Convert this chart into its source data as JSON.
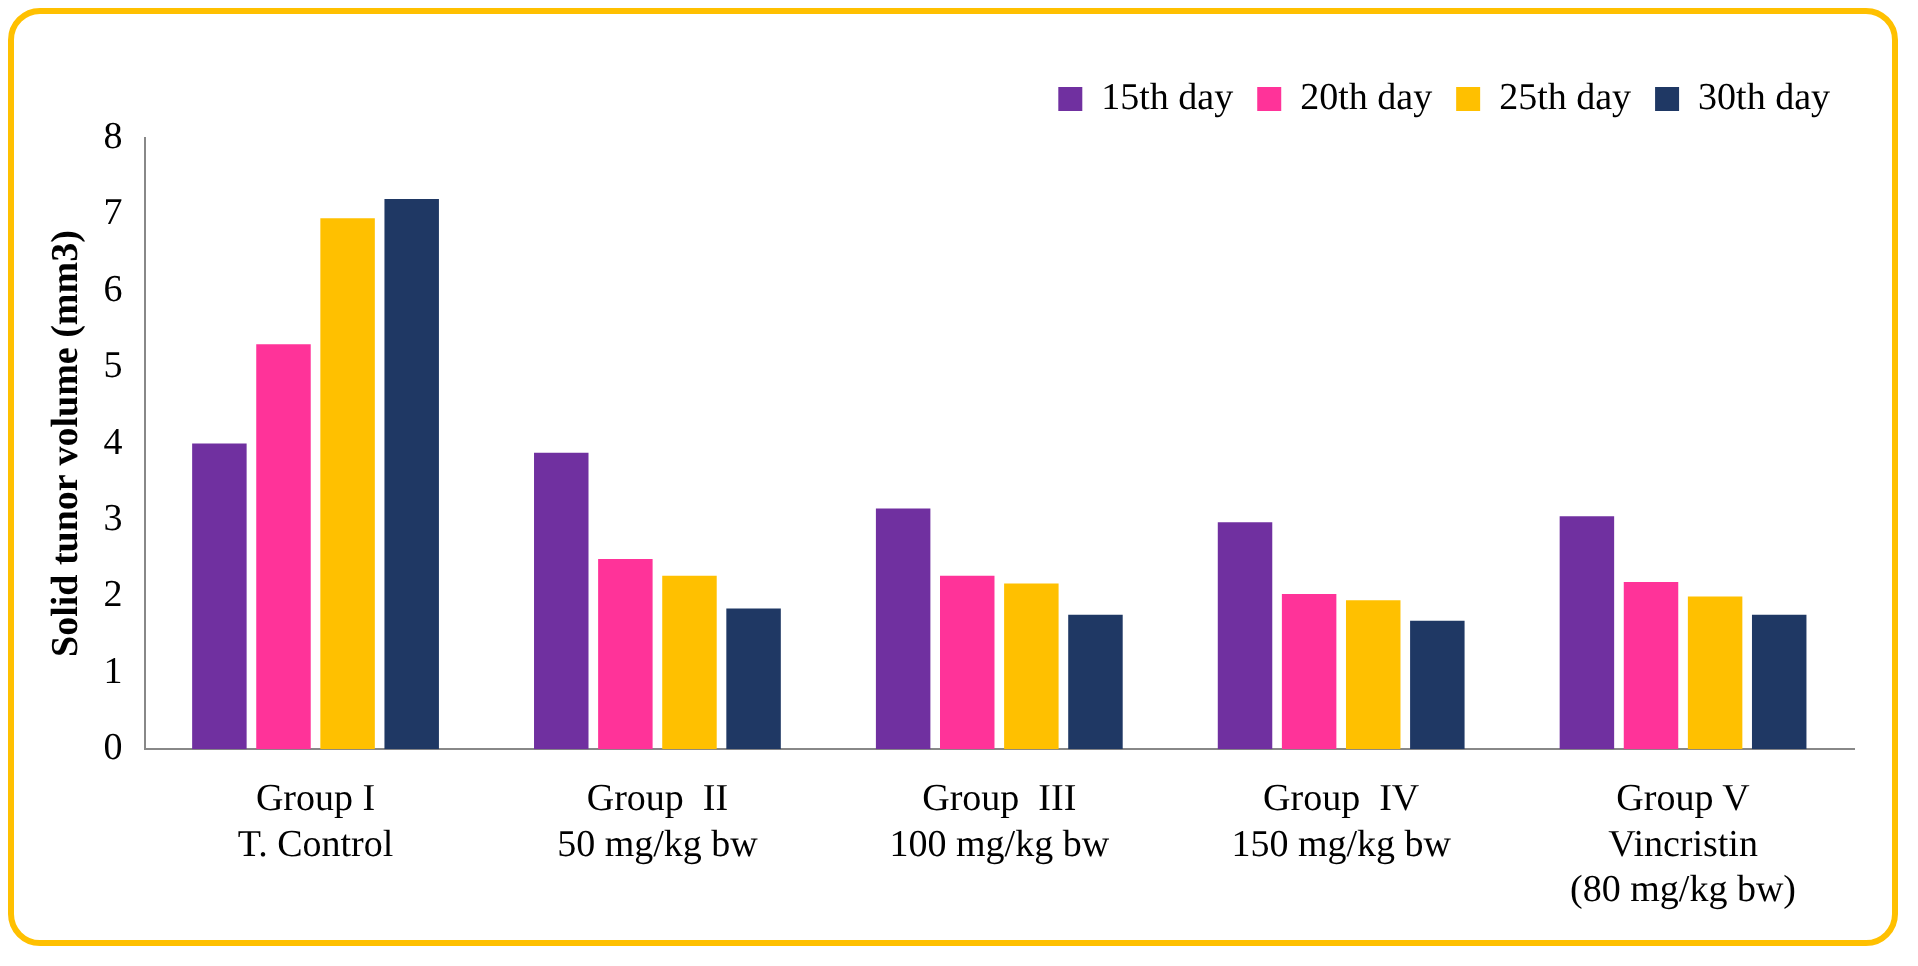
{
  "chart_data": {
    "type": "bar",
    "ylabel": "Solid tunor volume (mm3)",
    "categories": [
      "Group I\nT. Control",
      "Group  II\n50 mg/kg bw",
      "Group  III\n100 mg/kg bw",
      "Group  IV\n150 mg/kg bw",
      "Group V\nVincristin\n(80 mg/kg bw)"
    ],
    "series": [
      {
        "name": "15th day",
        "color": "#7030a0",
        "values": [
          4.0,
          3.88,
          3.15,
          2.97,
          3.05
        ]
      },
      {
        "name": "20th day",
        "color": "#ff3399",
        "values": [
          5.3,
          2.49,
          2.27,
          2.03,
          2.19
        ]
      },
      {
        "name": "25th day",
        "color": "#ffc000",
        "values": [
          6.95,
          2.27,
          2.17,
          1.95,
          2.0
        ]
      },
      {
        "name": "30th day",
        "color": "#1f3864",
        "values": [
          7.2,
          1.84,
          1.76,
          1.68,
          1.76
        ]
      }
    ],
    "ylim": [
      0,
      8
    ],
    "yticks": [
      0,
      1,
      2,
      3,
      4,
      5,
      6,
      7,
      8
    ],
    "legend": "top right"
  }
}
